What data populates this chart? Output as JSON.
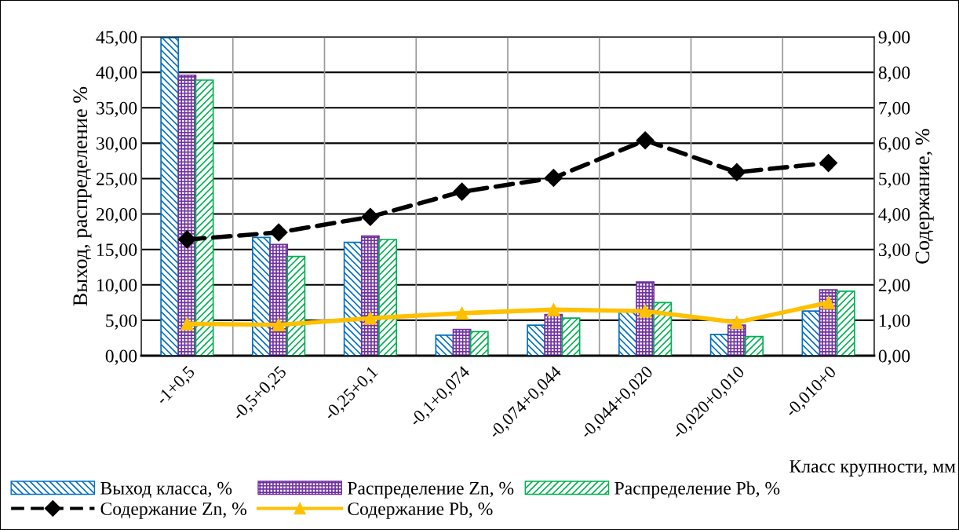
{
  "chart_data": {
    "type": "bar",
    "categories": [
      "-1+0,5",
      "-0,5+0,25",
      "-0,25+0,1",
      "-0,1+0,074",
      "-0,074+0,044",
      "-0,044+0,020",
      "-0,020+0,010",
      "-0,010+0"
    ],
    "xlabel": "Класс крупности, мм",
    "ylabel": "Выход, распределение %",
    "y2label": "Содержание, %",
    "series": [
      {
        "name": "Выход класса, %",
        "color": "#0070c0",
        "values": [
          44.9,
          16.7,
          16.0,
          2.9,
          4.3,
          6.2,
          3.0,
          6.3
        ]
      },
      {
        "name": "Распределение Zn, %",
        "color": "#7030a0",
        "values": [
          39.6,
          15.7,
          16.9,
          3.7,
          5.8,
          10.4,
          4.3,
          9.3
        ]
      },
      {
        "name": "Распределение Pb, %",
        "color": "#00b050",
        "values": [
          38.9,
          14.0,
          16.4,
          3.4,
          5.3,
          7.5,
          2.7,
          9.1
        ]
      },
      {
        "name": "Содержание Zn, %",
        "type": "line",
        "axis": "y2",
        "color": "#000000",
        "marker": "diamond",
        "line_style": "dashed",
        "values": [
          3.28,
          3.48,
          3.92,
          4.63,
          5.02,
          6.08,
          5.18,
          5.44
        ]
      },
      {
        "name": "Содержание Pb, %",
        "type": "line",
        "axis": "y2",
        "color": "#ffc000",
        "marker": "triangle",
        "line_style": "solid",
        "values": [
          0.9,
          0.87,
          1.06,
          1.2,
          1.3,
          1.26,
          0.94,
          1.5
        ]
      }
    ],
    "ylim": [
      0,
      45
    ],
    "yticks": [
      {
        "value": 0,
        "label": "0,00"
      },
      {
        "value": 5,
        "label": "5,00"
      },
      {
        "value": 10,
        "label": "10,00"
      },
      {
        "value": 15,
        "label": "15,00"
      },
      {
        "value": 20,
        "label": "20,00"
      },
      {
        "value": 25,
        "label": "25,00"
      },
      {
        "value": 30,
        "label": "30,00"
      },
      {
        "value": 35,
        "label": "35,00"
      },
      {
        "value": 40,
        "label": "40,00"
      },
      {
        "value": 45,
        "label": "45,00"
      }
    ],
    "y2lim": [
      0,
      9
    ],
    "y2ticks": [
      {
        "value": 0,
        "label": "0,00"
      },
      {
        "value": 1,
        "label": "1,00"
      },
      {
        "value": 2,
        "label": "2,00"
      },
      {
        "value": 3,
        "label": "3,00"
      },
      {
        "value": 4,
        "label": "4,00"
      },
      {
        "value": 5,
        "label": "5,00"
      },
      {
        "value": 6,
        "label": "6,00"
      },
      {
        "value": 7,
        "label": "7,00"
      },
      {
        "value": 8,
        "label": "8,00"
      },
      {
        "value": 9,
        "label": "9,00"
      }
    ],
    "grid": true,
    "legend": "bottom"
  }
}
